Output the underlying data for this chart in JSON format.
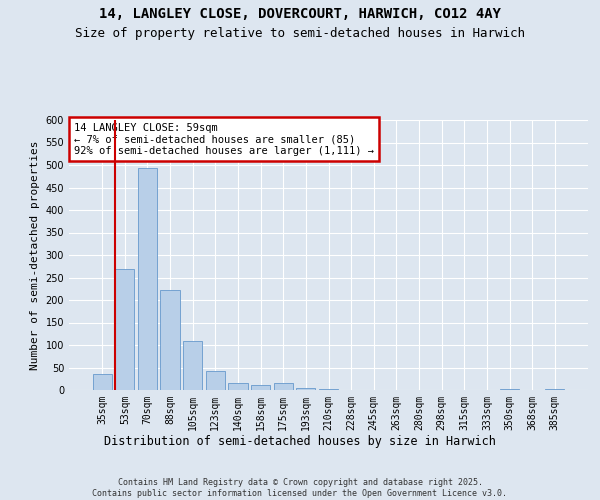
{
  "title1": "14, LANGLEY CLOSE, DOVERCOURT, HARWICH, CO12 4AY",
  "title2": "Size of property relative to semi-detached houses in Harwich",
  "xlabel": "Distribution of semi-detached houses by size in Harwich",
  "ylabel": "Number of semi-detached properties",
  "categories": [
    "35sqm",
    "53sqm",
    "70sqm",
    "88sqm",
    "105sqm",
    "123sqm",
    "140sqm",
    "158sqm",
    "175sqm",
    "193sqm",
    "210sqm",
    "228sqm",
    "245sqm",
    "263sqm",
    "280sqm",
    "298sqm",
    "315sqm",
    "333sqm",
    "350sqm",
    "368sqm",
    "385sqm"
  ],
  "values": [
    35,
    270,
    493,
    222,
    108,
    43,
    15,
    12,
    15,
    5,
    2,
    1,
    0,
    0,
    0,
    0,
    0,
    0,
    2,
    0,
    2
  ],
  "bar_color": "#b8cfe8",
  "bar_edge_color": "#6699cc",
  "highlight_line_color": "#cc0000",
  "annotation_text": "14 LANGLEY CLOSE: 59sqm\n← 7% of semi-detached houses are smaller (85)\n92% of semi-detached houses are larger (1,111) →",
  "annotation_box_color": "#cc0000",
  "ylim": [
    0,
    600
  ],
  "yticks": [
    0,
    50,
    100,
    150,
    200,
    250,
    300,
    350,
    400,
    450,
    500,
    550,
    600
  ],
  "footer_text": "Contains HM Land Registry data © Crown copyright and database right 2025.\nContains public sector information licensed under the Open Government Licence v3.0.",
  "background_color": "#dde6f0",
  "plot_background_color": "#dde6f0",
  "grid_color": "#ffffff",
  "title_fontsize": 10,
  "subtitle_fontsize": 9,
  "tick_fontsize": 7,
  "ylabel_fontsize": 8,
  "xlabel_fontsize": 8.5,
  "annotation_fontsize": 7.5,
  "footer_fontsize": 6
}
